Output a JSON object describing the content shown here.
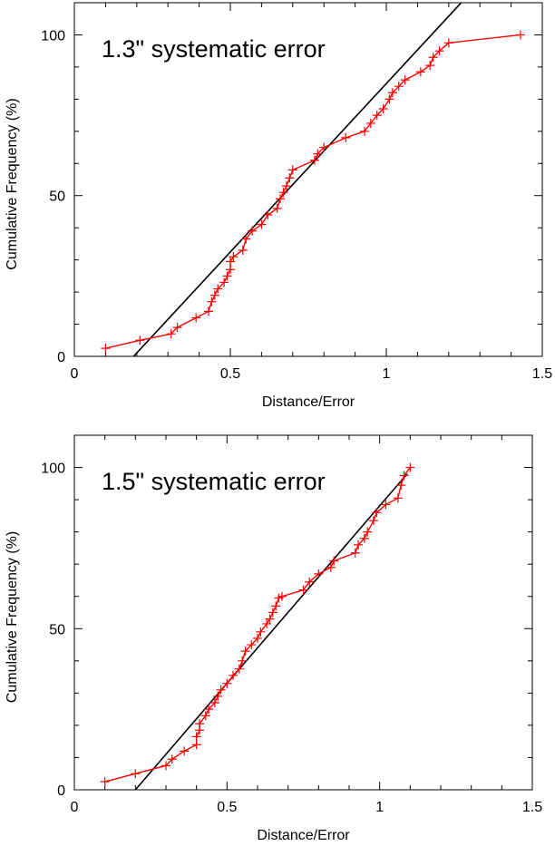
{
  "chart_data": [
    {
      "type": "line",
      "title": "1.3\" systematic error",
      "xlabel": "Distance/Error",
      "ylabel": "Cumulative Frequency (%)",
      "xlim": [
        0,
        1.5
      ],
      "ylim": [
        0,
        110
      ],
      "xticks": [
        "0",
        "0.5",
        "1",
        "1.5"
      ],
      "yticks": [
        "0",
        "50",
        "100"
      ],
      "xtick_values": [
        0,
        0.5,
        1,
        1.5
      ],
      "ytick_values": [
        0,
        50,
        100
      ],
      "xminor": [
        0.1,
        0.2,
        0.3,
        0.4,
        0.6,
        0.7,
        0.8,
        0.9,
        1.1,
        1.2,
        1.3,
        1.4
      ],
      "yminor": [
        10,
        20,
        30,
        40,
        60,
        70,
        80,
        90
      ],
      "grid": false,
      "series": [
        {
          "color": "#ff0000",
          "marker": "plus",
          "x": [
            0.1,
            0.21,
            0.31,
            0.33,
            0.39,
            0.43,
            0.44,
            0.45,
            0.46,
            0.48,
            0.49,
            0.5,
            0.5,
            0.51,
            0.54,
            0.55,
            0.57,
            0.6,
            0.62,
            0.65,
            0.66,
            0.67,
            0.68,
            0.69,
            0.7,
            0.77,
            0.78,
            0.8,
            0.87,
            0.93,
            0.95,
            0.97,
            0.99,
            1.01,
            1.02,
            1.04,
            1.06,
            1.11,
            1.14,
            1.15,
            1.17,
            1.2,
            1.43
          ],
          "y": [
            2.5,
            5,
            7,
            9,
            12,
            14,
            17,
            19,
            21,
            23,
            25,
            27,
            29.5,
            31,
            33,
            36.5,
            39,
            41,
            44,
            46,
            49,
            51,
            53,
            55.5,
            58,
            61,
            63,
            65,
            68,
            70,
            72.5,
            75,
            77,
            80,
            82,
            84,
            86,
            88.5,
            90.5,
            93,
            95,
            97.5,
            100
          ]
        },
        {
          "color": "#000000",
          "marker": "none",
          "x": [
            0.19,
            1.24
          ],
          "y": [
            0,
            110
          ]
        }
      ],
      "annotations": []
    },
    {
      "type": "line",
      "title": "1.5\" systematic error",
      "xlabel": "Distance/Error",
      "ylabel": "Cumulative Frequency (%)",
      "xlim": [
        0,
        1.5
      ],
      "ylim": [
        0,
        110
      ],
      "xticks": [
        "0",
        "0.5",
        "1",
        "1.5"
      ],
      "yticks": [
        "0",
        "50",
        "100"
      ],
      "xtick_values": [
        0,
        0.5,
        1,
        1.5
      ],
      "ytick_values": [
        0,
        50,
        100
      ],
      "xminor": [
        0.1,
        0.2,
        0.3,
        0.4,
        0.6,
        0.7,
        0.8,
        0.9,
        1.1,
        1.2,
        1.3,
        1.4
      ],
      "yminor": [
        10,
        20,
        30,
        40,
        60,
        70,
        80,
        90
      ],
      "grid": false,
      "series": [
        {
          "color": "#ff0000",
          "marker": "plus",
          "x": [
            0.1,
            0.2,
            0.3,
            0.32,
            0.36,
            0.4,
            0.4,
            0.41,
            0.41,
            0.43,
            0.44,
            0.46,
            0.47,
            0.48,
            0.5,
            0.52,
            0.54,
            0.55,
            0.56,
            0.58,
            0.6,
            0.61,
            0.63,
            0.64,
            0.65,
            0.66,
            0.67,
            0.68,
            0.75,
            0.77,
            0.8,
            0.84,
            0.85,
            0.92,
            0.93,
            0.95,
            0.96,
            0.98,
            0.99,
            1.02,
            1.06,
            1.07,
            1.08,
            1.1
          ],
          "y": [
            2.5,
            5,
            7.5,
            9.5,
            12,
            14,
            16.5,
            18.5,
            20.5,
            23,
            25,
            27,
            29,
            31,
            33,
            35.5,
            37.5,
            40,
            43,
            45,
            47,
            49,
            51.5,
            53,
            55,
            57,
            59.5,
            60,
            62,
            64.5,
            67,
            69,
            71,
            73.5,
            76,
            78,
            80,
            83.5,
            86,
            88.5,
            90.5,
            94.5,
            97.5,
            100
          ]
        },
        {
          "color": "#000000",
          "marker": "none",
          "x": [
            0.2,
            1.09
          ],
          "y": [
            0,
            98
          ]
        }
      ],
      "annotations": []
    }
  ]
}
